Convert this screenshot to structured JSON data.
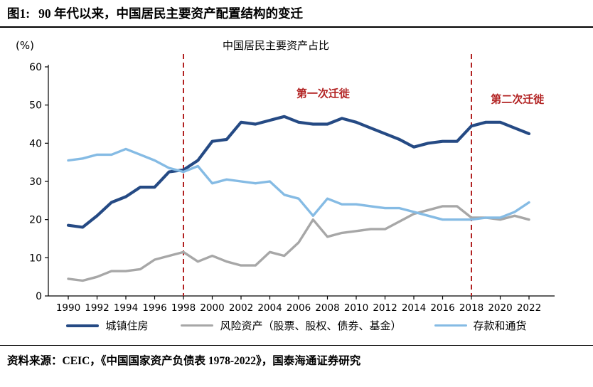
{
  "header": {
    "figure_label": "图1:",
    "title": "90 年代以来，中国居民主要资产配置结构的变迁"
  },
  "source": "资料来源：CEIC，《中国国家资产负债表 1978-2022》，国泰海通证券研究",
  "chart_data": {
    "type": "line",
    "title": "中国居民主要资产占比",
    "y_unit_label": "(%)",
    "ylim": [
      0,
      60
    ],
    "ytick_step": 10,
    "xtick_step": 2,
    "grid": false,
    "legend_position": "bottom",
    "x": [
      1990,
      1991,
      1992,
      1993,
      1994,
      1995,
      1996,
      1997,
      1998,
      1999,
      2000,
      2001,
      2002,
      2003,
      2004,
      2005,
      2006,
      2007,
      2008,
      2009,
      2010,
      2011,
      2012,
      2013,
      2014,
      2015,
      2016,
      2017,
      2018,
      2019,
      2020,
      2021,
      2022
    ],
    "series": [
      {
        "name": "城镇住房",
        "color": "#254A84",
        "width": 4.2,
        "values": [
          18.5,
          18,
          21,
          24.5,
          26,
          28.5,
          28.5,
          32.5,
          33,
          35.5,
          40.5,
          41,
          45.5,
          45,
          46,
          47,
          45.5,
          45,
          45,
          46.5,
          45.5,
          44,
          42.5,
          41,
          39,
          40,
          40.5,
          40.5,
          44.5,
          45.5,
          45.5,
          44,
          42.5
        ]
      },
      {
        "name": "风险资产（股票、股权、债券、基金）",
        "color": "#A7A7A7",
        "width": 3.4,
        "values": [
          4.5,
          4,
          5,
          6.5,
          6.5,
          7,
          9.5,
          10.5,
          11.5,
          9,
          10.5,
          9,
          8,
          8,
          11.5,
          10.5,
          14,
          20,
          15.5,
          16.5,
          17,
          17.5,
          17.5,
          19.5,
          21.5,
          22.5,
          23.5,
          23.5,
          20.5,
          20.5,
          20,
          21,
          20
        ]
      },
      {
        "name": "存款和通货",
        "color": "#85BBE4",
        "width": 3.4,
        "values": [
          35.5,
          36,
          37,
          37,
          38.5,
          37,
          35.5,
          33.5,
          32.5,
          34,
          29.5,
          30.5,
          30,
          29.5,
          30,
          26.5,
          25.5,
          21,
          25.5,
          24,
          24,
          23.5,
          23,
          23,
          22,
          21,
          20,
          20,
          20,
          20.5,
          20.5,
          22,
          24.5
        ]
      }
    ],
    "vline_color": "#B22222",
    "vlines": [
      {
        "x": 1998
      },
      {
        "x": 2018
      }
    ],
    "annotations": [
      {
        "text": "第一次迁徙",
        "x": 2007.7,
        "y": 53
      },
      {
        "text": "第二次迁徙",
        "x": 2021.2,
        "y": 51.5
      }
    ]
  }
}
